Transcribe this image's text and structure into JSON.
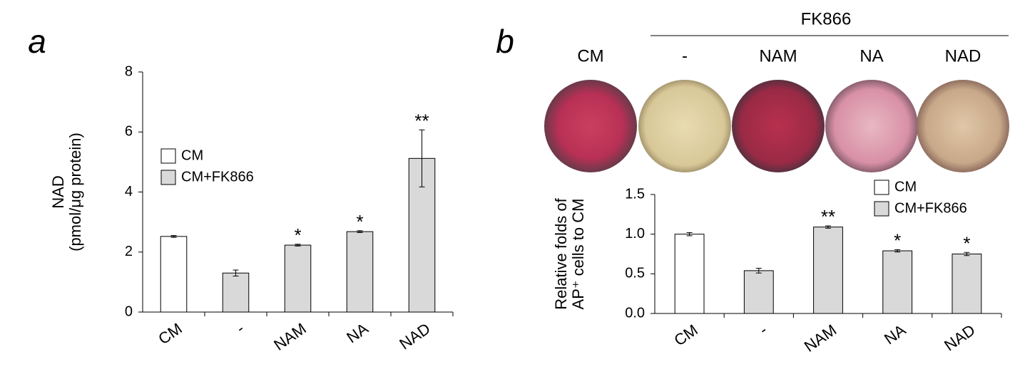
{
  "chart_data": [
    {
      "type": "bar",
      "panel_label": "a",
      "ylabel": [
        "NAD",
        "(pmol/μg protein)"
      ],
      "categories": [
        "CM",
        "-",
        "NAM",
        "NA",
        "NAD"
      ],
      "series": [
        {
          "name": "CM",
          "color": "#ffffff",
          "values": [
            2.52,
            null,
            null,
            null,
            null
          ],
          "errors": [
            0.03,
            null,
            null,
            null,
            null
          ]
        },
        {
          "name": "CM+FK866",
          "color": "#d9d9d9",
          "values": [
            null,
            1.3,
            2.23,
            2.68,
            5.12
          ],
          "errors": [
            null,
            0.1,
            0.03,
            0.03,
            0.95
          ]
        }
      ],
      "annotations": [
        null,
        null,
        "*",
        "*",
        "**"
      ],
      "ylim": [
        0,
        8
      ],
      "yticks": [
        0,
        2,
        4,
        6,
        8
      ],
      "legend": "center left"
    },
    {
      "type": "bar",
      "panel_label": "b",
      "image_group_label": "FK866",
      "image_labels": [
        "CM",
        "-",
        "NAM",
        "NA",
        "NAD"
      ],
      "ylabel": [
        "Relative folds of",
        "AP⁺ cells to CM"
      ],
      "categories": [
        "CM",
        "-",
        "NAM",
        "NA",
        "NAD"
      ],
      "series": [
        {
          "name": "CM",
          "color": "#ffffff",
          "values": [
            1.0,
            null,
            null,
            null,
            null
          ],
          "errors": [
            0.02,
            null,
            null,
            null,
            null
          ]
        },
        {
          "name": "CM+FK866",
          "color": "#d9d9d9",
          "values": [
            null,
            0.54,
            1.09,
            0.79,
            0.75
          ],
          "errors": [
            null,
            0.03,
            0.015,
            0.015,
            0.02
          ]
        }
      ],
      "annotations": [
        null,
        null,
        "**",
        "*",
        "*"
      ],
      "ylim": [
        0,
        1.5
      ],
      "yticks": [
        {
          "value": 0,
          "label": "0.0"
        },
        0.5,
        {
          "value": 1,
          "label": "1.0"
        },
        1.5
      ],
      "legend": "upper right"
    }
  ]
}
